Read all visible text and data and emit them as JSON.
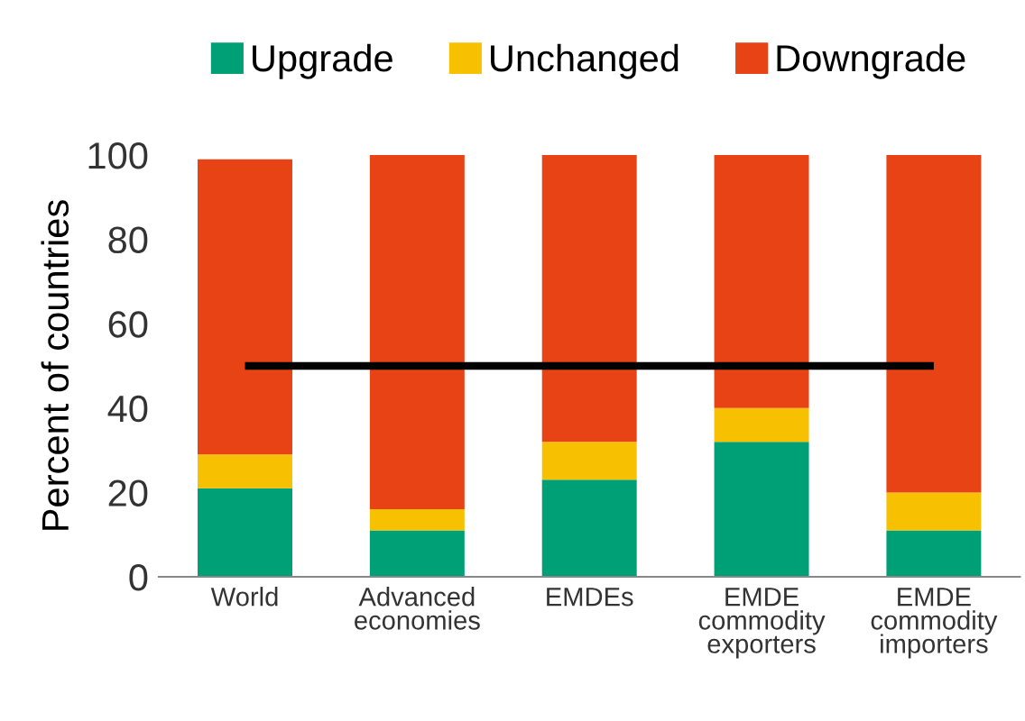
{
  "chart_data": {
    "type": "bar",
    "stacked": true,
    "ylabel": "Percent of countries",
    "categories": [
      "World",
      "Advanced\neconomies",
      "EMDEs",
      "EMDE\ncommodity\nexporters",
      "EMDE\ncommodity\nimporters"
    ],
    "series": [
      {
        "name": "Upgrade",
        "color": "#00a077",
        "values": [
          21,
          11,
          23,
          32,
          11
        ]
      },
      {
        "name": "Unchanged",
        "color": "#f7c000",
        "values": [
          8,
          5,
          9,
          8,
          9
        ]
      },
      {
        "name": "Downgrade",
        "color": "#e84315",
        "values": [
          70,
          84,
          68,
          60,
          80
        ]
      }
    ],
    "ylim": [
      0,
      100
    ],
    "yticks": [
      0,
      20,
      40,
      60,
      80,
      100
    ],
    "ref_lines": [
      {
        "axis": "y",
        "value": 50,
        "color": "#000000",
        "line_style": "solid"
      }
    ],
    "legend": "top",
    "grid": false
  }
}
